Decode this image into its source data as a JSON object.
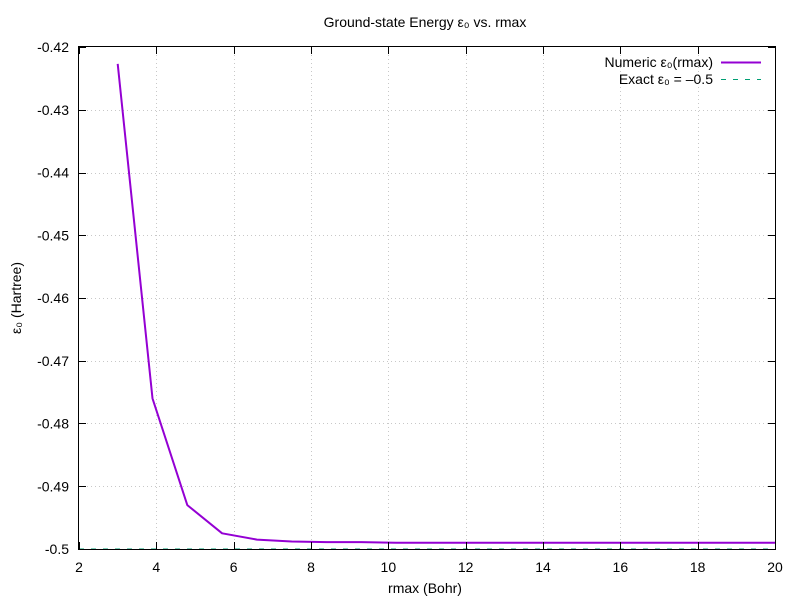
{
  "chart_data": {
    "type": "line",
    "title": "Ground-state Energy ε₀ vs. rmax",
    "xlabel": "rmax (Bohr)",
    "ylabel": "ε₀ (Hartree)",
    "xlim": [
      2,
      20
    ],
    "ylim": [
      -0.5,
      -0.42
    ],
    "xticks": [
      2,
      4,
      6,
      8,
      10,
      12,
      14,
      16,
      18,
      20
    ],
    "yticks": [
      -0.5,
      -0.49,
      -0.48,
      -0.47,
      -0.46,
      -0.45,
      -0.44,
      -0.43,
      -0.42
    ],
    "xtick_labels": [
      "2",
      "4",
      "6",
      "8",
      "10",
      "12",
      "14",
      "16",
      "18",
      "20"
    ],
    "ytick_labels": [
      "-0.5",
      "-0.49",
      "-0.48",
      "-0.47",
      "-0.46",
      "-0.45",
      "-0.44",
      "-0.43",
      "-0.42"
    ],
    "grid": true,
    "legend_position": "top-right",
    "series": [
      {
        "name": "Numeric ε₀(rmax)",
        "color": "#9400d3",
        "style": "solid",
        "x": [
          3.0,
          3.9,
          4.8,
          5.7,
          6.6,
          7.5,
          8.4,
          9.3,
          10.2,
          11.1,
          12.0,
          12.9,
          13.8,
          14.7,
          15.6,
          16.5,
          17.4,
          18.3,
          19.2,
          20.0
        ],
        "y": [
          -0.4227,
          -0.476,
          -0.493,
          -0.4975,
          -0.4985,
          -0.4988,
          -0.4989,
          -0.4989,
          -0.499,
          -0.499,
          -0.499,
          -0.499,
          -0.499,
          -0.499,
          -0.499,
          -0.499,
          -0.499,
          -0.499,
          -0.499,
          -0.499
        ]
      },
      {
        "name": "Exact ε₀ = –0.5",
        "color": "#009e73",
        "style": "dashed",
        "x": [
          2,
          20
        ],
        "y": [
          -0.5,
          -0.5
        ]
      }
    ]
  }
}
